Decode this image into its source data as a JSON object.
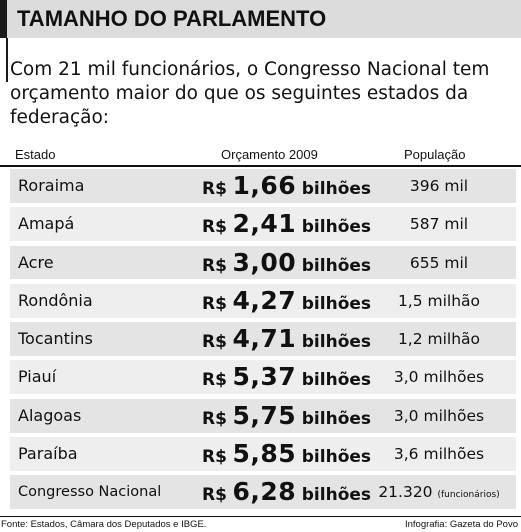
{
  "header": {
    "title": "TAMANHO DO PARLAMENTO"
  },
  "intro": "Com 21 mil funcionários, o Congresso Nacional tem orçamento maior do que os seguintes estados da federação:",
  "table": {
    "columns": [
      "Estado",
      "Orçamento 2009",
      "População"
    ],
    "currency": "R$",
    "unit": "bilhões",
    "rows": [
      {
        "estado": "Roraima",
        "valor": "1,66",
        "populacao": "396 mil",
        "nota": ""
      },
      {
        "estado": "Amapá",
        "valor": "2,41",
        "populacao": "587 mil",
        "nota": ""
      },
      {
        "estado": "Acre",
        "valor": "3,00",
        "populacao": "655 mil",
        "nota": ""
      },
      {
        "estado": "Rondônia",
        "valor": "4,27",
        "populacao": "1,5 milhão",
        "nota": ""
      },
      {
        "estado": "Tocantins",
        "valor": "4,71",
        "populacao": "1,2 milhão",
        "nota": ""
      },
      {
        "estado": "Piauí",
        "valor": "5,37",
        "populacao": "3,0 milhões",
        "nota": ""
      },
      {
        "estado": "Alagoas",
        "valor": "5,75",
        "populacao": "3,0 milhões",
        "nota": ""
      },
      {
        "estado": "Paraíba",
        "valor": "5,85",
        "populacao": "3,6 milhões",
        "nota": ""
      },
      {
        "estado": "Congresso Nacional",
        "valor": "6,28",
        "populacao": "21.320",
        "nota": "(funcionários)"
      }
    ]
  },
  "footer": {
    "source": "Fonte: Estados, Câmara dos Deputados e IBGE.",
    "credit": "Infografia: Gazeta do Povo"
  }
}
